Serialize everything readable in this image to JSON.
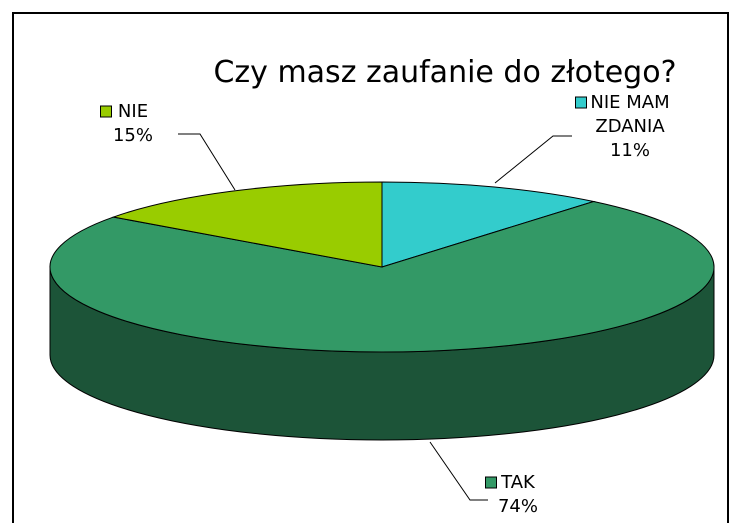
{
  "chart_data": {
    "type": "pie",
    "title": "Czy masz zaufanie do złotego?",
    "categories": [
      "NIE MAM ZDANIA",
      "TAK",
      "NIE"
    ],
    "values": [
      11,
      74,
      15
    ],
    "value_labels": [
      "11%",
      "74%",
      "15%"
    ],
    "colors": [
      "#33cccc",
      "#339966",
      "#99cc00"
    ],
    "legend_markers": true
  }
}
